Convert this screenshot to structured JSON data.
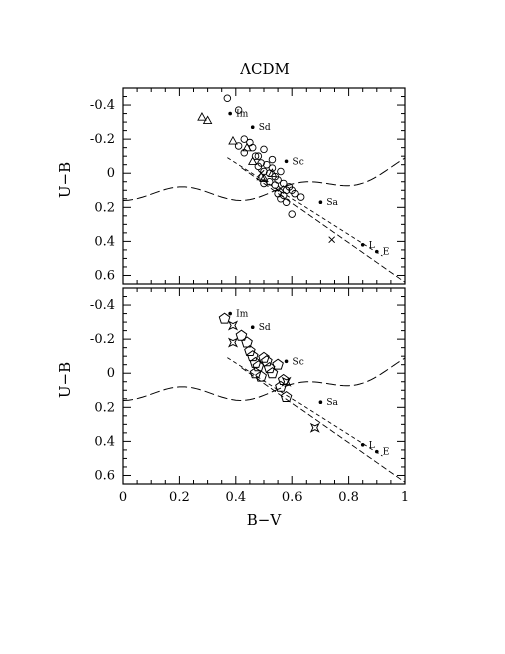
{
  "chart_data": [
    {
      "type": "scatter",
      "panel": "top",
      "title": "ΛCDM",
      "xlabel": "",
      "ylabel": "U−B",
      "xlim": [
        0,
        1
      ],
      "ylim": [
        0.65,
        -0.5
      ],
      "y_inverted": true,
      "yticks": [
        "-0.4",
        "-0.2",
        "0",
        "0.2",
        "0.4",
        "0.6"
      ],
      "series": [
        {
          "marker": "circle",
          "points": [
            [
              0.37,
              -0.44
            ],
            [
              0.41,
              -0.37
            ],
            [
              0.43,
              -0.2
            ],
            [
              0.45,
              -0.18
            ],
            [
              0.41,
              -0.16
            ],
            [
              0.43,
              -0.12
            ],
            [
              0.46,
              -0.15
            ],
            [
              0.48,
              -0.1
            ],
            [
              0.49,
              -0.06
            ],
            [
              0.5,
              -0.14
            ],
            [
              0.51,
              -0.05
            ],
            [
              0.5,
              -0.01
            ],
            [
              0.52,
              0.0
            ],
            [
              0.53,
              -0.03
            ],
            [
              0.54,
              0.02
            ],
            [
              0.55,
              0.04
            ],
            [
              0.52,
              0.05
            ],
            [
              0.56,
              -0.01
            ],
            [
              0.57,
              0.06
            ],
            [
              0.58,
              0.1
            ],
            [
              0.59,
              0.08
            ],
            [
              0.55,
              0.12
            ],
            [
              0.6,
              0.1
            ],
            [
              0.56,
              0.15
            ],
            [
              0.58,
              0.17
            ],
            [
              0.61,
              0.12
            ],
            [
              0.63,
              0.14
            ],
            [
              0.6,
              0.24
            ],
            [
              0.5,
              0.06
            ],
            [
              0.48,
              -0.04
            ],
            [
              0.54,
              0.07
            ],
            [
              0.57,
              0.13
            ],
            [
              0.53,
              -0.08
            ],
            [
              0.47,
              -0.1
            ]
          ]
        },
        {
          "marker": "triangle",
          "points": [
            [
              0.28,
              -0.33
            ],
            [
              0.3,
              -0.31
            ],
            [
              0.39,
              -0.19
            ],
            [
              0.44,
              -0.15
            ],
            [
              0.46,
              -0.07
            ],
            [
              0.49,
              0.02
            ],
            [
              0.5,
              0.03
            ],
            [
              0.53,
              0.0
            ]
          ]
        },
        {
          "marker": "cross",
          "points": [
            [
              0.49,
              0.0
            ],
            [
              0.56,
              0.09
            ],
            [
              0.74,
              0.39
            ]
          ]
        }
      ],
      "sequence_dots": [
        {
          "label": "Im",
          "x": 0.38,
          "y": -0.35
        },
        {
          "label": "Sd",
          "x": 0.46,
          "y": -0.27
        },
        {
          "label": "Sc",
          "x": 0.58,
          "y": -0.07
        },
        {
          "label": "Sa",
          "x": 0.7,
          "y": 0.17
        },
        {
          "label": "L",
          "x": 0.85,
          "y": 0.42
        },
        {
          "label": "E",
          "x": 0.9,
          "y": 0.46
        }
      ]
    },
    {
      "type": "scatter",
      "panel": "bottom",
      "xlabel": "B−V",
      "ylabel": "U−B",
      "xlim": [
        0,
        1
      ],
      "ylim": [
        0.65,
        -0.5
      ],
      "y_inverted": true,
      "xticks": [
        "0",
        "0.2",
        "0.4",
        "0.6",
        "0.8",
        "1"
      ],
      "yticks": [
        "-0.4",
        "-0.2",
        "0",
        "0.2",
        "0.4",
        "0.6"
      ],
      "series": [
        {
          "marker": "pentagon",
          "points": [
            [
              0.36,
              -0.32
            ],
            [
              0.42,
              -0.22
            ],
            [
              0.44,
              -0.18
            ],
            [
              0.45,
              -0.13
            ],
            [
              0.46,
              -0.1
            ],
            [
              0.47,
              -0.06
            ],
            [
              0.48,
              -0.04
            ],
            [
              0.5,
              -0.09
            ],
            [
              0.51,
              -0.07
            ],
            [
              0.52,
              -0.03
            ],
            [
              0.53,
              0.0
            ],
            [
              0.55,
              -0.05
            ],
            [
              0.57,
              0.04
            ],
            [
              0.56,
              0.08
            ],
            [
              0.58,
              0.14
            ],
            [
              0.49,
              0.02
            ],
            [
              0.47,
              0.0
            ]
          ]
        },
        {
          "marker": "star",
          "points": [
            [
              0.39,
              -0.28
            ],
            [
              0.39,
              -0.18
            ],
            [
              0.58,
              0.05
            ],
            [
              0.68,
              0.32
            ]
          ]
        }
      ],
      "sequence_dots": [
        {
          "label": "Im",
          "x": 0.38,
          "y": -0.35
        },
        {
          "label": "Sd",
          "x": 0.46,
          "y": -0.27
        },
        {
          "label": "Sc",
          "x": 0.58,
          "y": -0.07
        },
        {
          "label": "Sa",
          "x": 0.7,
          "y": 0.17
        },
        {
          "label": "L",
          "x": 0.85,
          "y": 0.42
        },
        {
          "label": "E",
          "x": 0.9,
          "y": 0.46
        }
      ]
    }
  ]
}
